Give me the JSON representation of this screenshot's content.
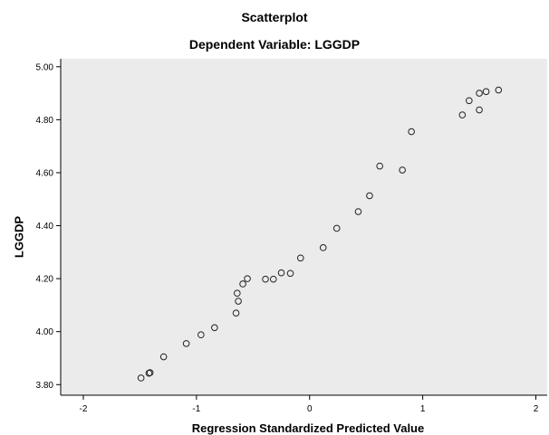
{
  "chart_data": {
    "type": "scatter",
    "title": "Scatterplot",
    "subtitle": "Dependent Variable: LGGDP",
    "xlabel": "Regression Standardized Predicted Value",
    "ylabel": "LGGDP",
    "xlim": [
      -2.2,
      2.1
    ],
    "ylim": [
      3.76,
      5.03
    ],
    "xticks": [
      -2,
      -1,
      0,
      1,
      2
    ],
    "xtick_labels": [
      "-2",
      "-1",
      "0",
      "1",
      "2"
    ],
    "yticks": [
      3.8,
      4.0,
      4.2,
      4.4,
      4.6,
      4.8,
      5.0
    ],
    "ytick_labels": [
      "3.80",
      "4.00",
      "4.20",
      "4.40",
      "4.60",
      "4.80",
      "5.00"
    ],
    "grid": false,
    "background": "#ebebeb",
    "marker": "open-circle",
    "points": [
      {
        "x": -1.49,
        "y": 3.825
      },
      {
        "x": -1.42,
        "y": 3.843
      },
      {
        "x": -1.41,
        "y": 3.845
      },
      {
        "x": -1.29,
        "y": 3.905
      },
      {
        "x": -1.09,
        "y": 3.955
      },
      {
        "x": -0.96,
        "y": 3.988
      },
      {
        "x": -0.84,
        "y": 4.015
      },
      {
        "x": -0.65,
        "y": 4.07
      },
      {
        "x": -0.63,
        "y": 4.115
      },
      {
        "x": -0.64,
        "y": 4.145
      },
      {
        "x": -0.59,
        "y": 4.18
      },
      {
        "x": -0.55,
        "y": 4.2
      },
      {
        "x": -0.39,
        "y": 4.198
      },
      {
        "x": -0.32,
        "y": 4.198
      },
      {
        "x": -0.25,
        "y": 4.222
      },
      {
        "x": -0.17,
        "y": 4.22
      },
      {
        "x": -0.08,
        "y": 4.278
      },
      {
        "x": 0.12,
        "y": 4.317
      },
      {
        "x": 0.24,
        "y": 4.39
      },
      {
        "x": 0.43,
        "y": 4.453
      },
      {
        "x": 0.53,
        "y": 4.513
      },
      {
        "x": 0.62,
        "y": 4.625
      },
      {
        "x": 0.82,
        "y": 4.61
      },
      {
        "x": 0.9,
        "y": 4.755
      },
      {
        "x": 1.35,
        "y": 4.818
      },
      {
        "x": 1.41,
        "y": 4.872
      },
      {
        "x": 1.5,
        "y": 4.837
      },
      {
        "x": 1.5,
        "y": 4.9
      },
      {
        "x": 1.56,
        "y": 4.906
      },
      {
        "x": 1.67,
        "y": 4.912
      }
    ]
  }
}
